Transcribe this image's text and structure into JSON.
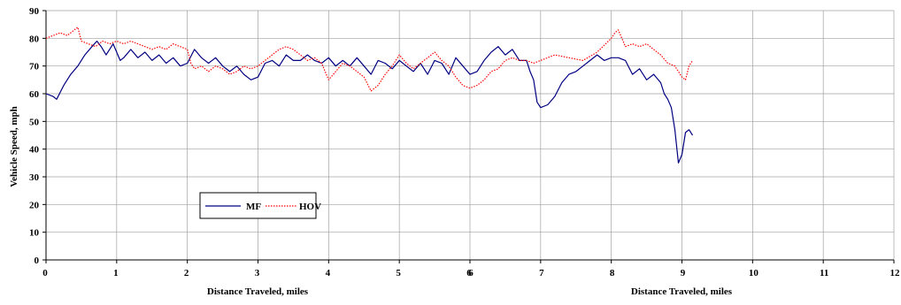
{
  "chart_data": {
    "type": "line",
    "ylabel": "Vehicle Speed, mph",
    "xlabel_left": "Distance Traveled, miles",
    "xlabel_right": "Distance Traveled, miles",
    "grid": true,
    "legend_position": "bottom-left inside plot",
    "left_axis": {
      "xlim": [
        0,
        6
      ],
      "ylim": [
        0,
        90
      ],
      "xticks": [
        "0",
        "1",
        "2",
        "3",
        "4",
        "5",
        "6"
      ],
      "yticks": [
        "0",
        "10",
        "20",
        "30",
        "40",
        "50",
        "60",
        "70",
        "80",
        "90"
      ]
    },
    "right_axis": {
      "xlim": [
        6,
        12
      ],
      "xticks": [
        "6",
        "7",
        "8",
        "9",
        "10",
        "11",
        "12"
      ]
    },
    "series": [
      {
        "name": "MF",
        "color": "#000080",
        "style": "solid",
        "x": [
          0,
          0.1,
          0.15,
          0.25,
          0.35,
          0.45,
          0.55,
          0.65,
          0.72,
          0.78,
          0.85,
          0.9,
          0.95,
          1.0,
          1.05,
          1.1,
          1.2,
          1.3,
          1.4,
          1.5,
          1.6,
          1.7,
          1.8,
          1.9,
          2.0,
          2.1,
          2.2,
          2.3,
          2.4,
          2.5,
          2.6,
          2.7,
          2.8,
          2.9,
          3.0,
          3.1,
          3.2,
          3.3,
          3.4,
          3.5,
          3.6,
          3.7,
          3.8,
          3.9,
          4.0,
          4.1,
          4.2,
          4.3,
          4.4,
          4.5,
          4.6,
          4.7,
          4.8,
          4.9,
          5.0,
          5.1,
          5.2,
          5.3,
          5.4,
          5.5,
          5.6,
          5.7,
          5.8,
          5.9,
          6.0,
          6.1,
          6.2,
          6.3,
          6.4,
          6.5,
          6.6,
          6.7,
          6.8,
          6.85,
          6.9,
          6.95,
          7.0,
          7.1,
          7.2,
          7.3,
          7.4,
          7.5,
          7.6,
          7.7,
          7.8,
          7.9,
          8.0,
          8.1,
          8.2,
          8.3,
          8.4,
          8.5,
          8.6,
          8.7,
          8.75,
          8.8,
          8.85,
          8.9,
          8.95,
          9.0,
          9.05,
          9.1,
          9.15
        ],
        "y": [
          60,
          59,
          58,
          63,
          67,
          70,
          74,
          77,
          79,
          77,
          74,
          76,
          78,
          75,
          72,
          73,
          76,
          73,
          75,
          72,
          74,
          71,
          73,
          70,
          71,
          76,
          73,
          71,
          73,
          70,
          68,
          70,
          67,
          65,
          66,
          71,
          72,
          70,
          74,
          72,
          72,
          74,
          72,
          71,
          73,
          70,
          72,
          70,
          73,
          70,
          67,
          72,
          71,
          69,
          72,
          70,
          68,
          71,
          67,
          72,
          71,
          67,
          73,
          70,
          67,
          68,
          72,
          75,
          77,
          74,
          76,
          72,
          72,
          68,
          65,
          57,
          55,
          56,
          59,
          64,
          67,
          68,
          70,
          72,
          74,
          72,
          73,
          73,
          72,
          67,
          69,
          65,
          67,
          64,
          60,
          58,
          55,
          47,
          35,
          38,
          46,
          47,
          45
        ]
      },
      {
        "name": "HOV",
        "color": "#FF0000",
        "style": "dotted",
        "x": [
          0,
          0.1,
          0.2,
          0.3,
          0.4,
          0.45,
          0.5,
          0.6,
          0.7,
          0.8,
          0.9,
          1.0,
          1.1,
          1.2,
          1.3,
          1.4,
          1.5,
          1.6,
          1.7,
          1.8,
          1.9,
          2.0,
          2.05,
          2.1,
          2.2,
          2.3,
          2.4,
          2.5,
          2.6,
          2.7,
          2.8,
          2.9,
          3.0,
          3.1,
          3.2,
          3.3,
          3.4,
          3.5,
          3.6,
          3.7,
          3.8,
          3.9,
          4.0,
          4.1,
          4.2,
          4.3,
          4.4,
          4.5,
          4.6,
          4.7,
          4.8,
          4.9,
          5.0,
          5.1,
          5.2,
          5.3,
          5.4,
          5.5,
          5.6,
          5.7,
          5.8,
          5.9,
          6.0,
          6.1,
          6.2,
          6.3,
          6.4,
          6.5,
          6.6,
          6.7,
          6.8,
          6.9,
          7.0,
          7.2,
          7.4,
          7.6,
          7.8,
          8.0,
          8.05,
          8.1,
          8.2,
          8.3,
          8.4,
          8.5,
          8.6,
          8.7,
          8.8,
          8.9,
          9.0,
          9.05,
          9.1,
          9.15
        ],
        "y": [
          80,
          81,
          82,
          81,
          83,
          84,
          79,
          78,
          77,
          79,
          78,
          79,
          78,
          79,
          78,
          77,
          76,
          77,
          76,
          78,
          77,
          76,
          71,
          69,
          70,
          68,
          70,
          69,
          67,
          68,
          70,
          69,
          70,
          72,
          74,
          76,
          77,
          76,
          74,
          72,
          73,
          71,
          65,
          68,
          71,
          70,
          68,
          66,
          61,
          63,
          67,
          70,
          74,
          71,
          69,
          71,
          73,
          75,
          72,
          70,
          66,
          63,
          62,
          63,
          65,
          68,
          69,
          72,
          73,
          72,
          72,
          71,
          72,
          74,
          73,
          72,
          75,
          80,
          82,
          83,
          77,
          78,
          77,
          78,
          76,
          74,
          71,
          70,
          66,
          65,
          70,
          72
        ]
      }
    ],
    "legend": [
      "MF",
      "HOV"
    ]
  }
}
